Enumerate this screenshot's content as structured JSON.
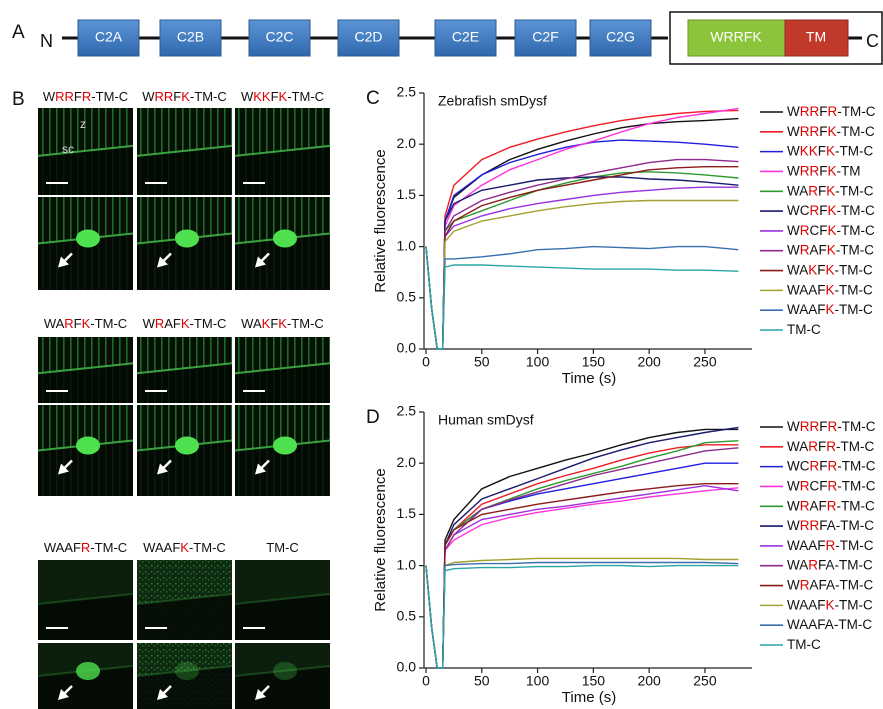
{
  "highlight_color": "#e00000",
  "panel_a": {
    "label": "A",
    "n_terminus": "N",
    "c_terminus": "C",
    "domains": [
      "C2A",
      "C2B",
      "C2C",
      "C2D",
      "C2E",
      "C2F",
      "C2G"
    ],
    "motif": "WRRFK",
    "tm": "TM"
  },
  "panel_b": {
    "label": "B",
    "z_label": "z",
    "sc_label": "sc",
    "constructs": [
      {
        "name": "WRRFR-TM-C",
        "red_letters": [
          1,
          2,
          4
        ]
      },
      {
        "name": "WRRFK-TM-C",
        "red_letters": [
          1,
          2,
          4
        ]
      },
      {
        "name": "WKKFK-TM-C",
        "red_letters": [
          1,
          2,
          4
        ]
      },
      {
        "name": "WARFK-TM-C",
        "red_letters": [
          2,
          4
        ]
      },
      {
        "name": "WRAFK-TM-C",
        "red_letters": [
          1,
          4
        ]
      },
      {
        "name": "WAKFK-TM-C",
        "red_letters": [
          2,
          4
        ]
      },
      {
        "name": "WAAFR-TM-C",
        "red_letters": [
          4
        ]
      },
      {
        "name": "WAAFK-TM-C",
        "red_letters": [
          4
        ]
      },
      {
        "name": "TM-C",
        "red_letters": []
      }
    ]
  },
  "chart_data": [
    {
      "type": "line",
      "panel_label": "C",
      "title": "Zebrafish smDysf",
      "xlabel": "Time (s)",
      "ylabel": "Relative fluorescence",
      "xlim": [
        0,
        285
      ],
      "xticks": [
        0,
        50,
        100,
        150,
        200,
        250
      ],
      "ylim": [
        0,
        2.5
      ],
      "yticks": [
        {
          "value": 0,
          "label": "0.0"
        },
        {
          "value": 0.5,
          "label": "0.5"
        },
        {
          "value": 1,
          "label": "1.0"
        },
        {
          "value": 1.5,
          "label": "1.5"
        },
        {
          "value": 2,
          "label": "2.0"
        },
        {
          "value": 2.5,
          "label": "2.5"
        }
      ],
      "x": [
        0,
        5,
        10,
        15,
        17,
        25,
        50,
        75,
        100,
        125,
        150,
        175,
        200,
        225,
        250,
        280
      ],
      "series": [
        {
          "name": "WRRFR-TM-C",
          "red_letters": [
            1,
            2,
            4
          ],
          "color": "#111111",
          "values": [
            1,
            0.4,
            0,
            0,
            1.25,
            1.48,
            1.7,
            1.85,
            1.95,
            2.03,
            2.1,
            2.16,
            2.2,
            2.22,
            2.23,
            2.25
          ]
        },
        {
          "name": "WRRFK-TM-C",
          "red_letters": [
            1,
            2,
            4
          ],
          "color": "#ee1c25",
          "values": [
            1,
            0.4,
            0,
            0,
            1.3,
            1.6,
            1.85,
            1.97,
            2.05,
            2.12,
            2.18,
            2.23,
            2.27,
            2.3,
            2.32,
            2.33
          ]
        },
        {
          "name": "WKKFK-TM-C",
          "red_letters": [
            1,
            2,
            4
          ],
          "color": "#1f1fe0",
          "values": [
            1,
            0.4,
            0,
            0,
            1.25,
            1.5,
            1.7,
            1.82,
            1.9,
            1.97,
            2.02,
            2.04,
            2.03,
            2.02,
            2.0,
            1.97
          ]
        },
        {
          "name": "WRRFK-TM",
          "red_letters": [
            1,
            2,
            4
          ],
          "color": "#ff33dd",
          "values": [
            1,
            0.4,
            0,
            0,
            1.2,
            1.4,
            1.6,
            1.75,
            1.85,
            1.95,
            2.03,
            2.12,
            2.2,
            2.26,
            2.3,
            2.35
          ]
        },
        {
          "name": "WARFK-TM-C",
          "red_letters": [
            2,
            4
          ],
          "color": "#2e9a2e",
          "values": [
            1,
            0.4,
            0,
            0,
            1.15,
            1.25,
            1.35,
            1.45,
            1.55,
            1.62,
            1.68,
            1.72,
            1.73,
            1.72,
            1.7,
            1.67
          ]
        },
        {
          "name": "WCRFK-TM-C",
          "red_letters": [
            2,
            4
          ],
          "color": "#1a1a6e",
          "values": [
            1,
            0.4,
            0,
            0,
            1.25,
            1.42,
            1.55,
            1.6,
            1.65,
            1.67,
            1.68,
            1.68,
            1.66,
            1.65,
            1.63,
            1.6
          ]
        },
        {
          "name": "WRCFK-TM-C",
          "red_letters": [
            1,
            4
          ],
          "color": "#9b30e0",
          "values": [
            1,
            0.4,
            0,
            0,
            1.1,
            1.2,
            1.3,
            1.37,
            1.42,
            1.46,
            1.5,
            1.53,
            1.55,
            1.57,
            1.58,
            1.58
          ]
        },
        {
          "name": "WRAFK-TM-C",
          "red_letters": [
            1,
            4
          ],
          "color": "#8e2a8e",
          "values": [
            1,
            0.4,
            0,
            0,
            1.15,
            1.3,
            1.45,
            1.53,
            1.6,
            1.66,
            1.72,
            1.77,
            1.82,
            1.85,
            1.85,
            1.83
          ]
        },
        {
          "name": "WAKFK-TM-C",
          "red_letters": [
            2,
            4
          ],
          "color": "#8b1a1a",
          "values": [
            1,
            0.4,
            0,
            0,
            1.1,
            1.25,
            1.4,
            1.48,
            1.55,
            1.6,
            1.65,
            1.7,
            1.75,
            1.77,
            1.78,
            1.78
          ]
        },
        {
          "name": "WAAFK-TM-C",
          "red_letters": [
            4
          ],
          "color": "#a3a032",
          "values": [
            1,
            0.4,
            0,
            0,
            1.05,
            1.15,
            1.25,
            1.3,
            1.35,
            1.39,
            1.42,
            1.44,
            1.45,
            1.45,
            1.45,
            1.45
          ]
        },
        {
          "name": "WAAFK-TM-C",
          "red_letters": [
            4
          ],
          "color": "#3a6fb0",
          "values": [
            1,
            0.4,
            0,
            0,
            0.88,
            0.88,
            0.9,
            0.93,
            0.97,
            0.98,
            1.0,
            0.99,
            0.98,
            1.0,
            1.0,
            0.97
          ]
        },
        {
          "name": "TM-C",
          "red_letters": [],
          "color": "#2aa5a5",
          "values": [
            1,
            0.4,
            0,
            0,
            0.8,
            0.82,
            0.82,
            0.81,
            0.8,
            0.79,
            0.78,
            0.78,
            0.78,
            0.77,
            0.77,
            0.76
          ]
        }
      ]
    },
    {
      "type": "line",
      "panel_label": "D",
      "title": "Human smDysf",
      "xlabel": "Time (s)",
      "ylabel": "Relative fluorescence",
      "xlim": [
        0,
        285
      ],
      "xticks": [
        0,
        50,
        100,
        150,
        200,
        250
      ],
      "ylim": [
        0,
        2.5
      ],
      "yticks": [
        {
          "value": 0,
          "label": "0.0"
        },
        {
          "value": 0.5,
          "label": "0.5"
        },
        {
          "value": 1,
          "label": "1.0"
        },
        {
          "value": 1.5,
          "label": "1.5"
        },
        {
          "value": 2,
          "label": "2.0"
        },
        {
          "value": 2.5,
          "label": "2.5"
        }
      ],
      "x": [
        0,
        5,
        10,
        15,
        17,
        25,
        50,
        75,
        100,
        125,
        150,
        175,
        200,
        225,
        250,
        280
      ],
      "series": [
        {
          "name": "WRRFR-TM-C",
          "red_letters": [
            1,
            2,
            4
          ],
          "color": "#111111",
          "values": [
            1,
            0.4,
            0,
            0,
            1.25,
            1.45,
            1.75,
            1.87,
            1.95,
            2.03,
            2.1,
            2.18,
            2.25,
            2.3,
            2.33,
            2.33
          ]
        },
        {
          "name": "WARFR-TM-C",
          "red_letters": [
            2,
            4
          ],
          "color": "#ee1c25",
          "values": [
            1,
            0.4,
            0,
            0,
            1.2,
            1.35,
            1.6,
            1.7,
            1.8,
            1.88,
            1.95,
            2.03,
            2.1,
            2.15,
            2.18,
            2.18
          ]
        },
        {
          "name": "WCRFR-TM-C",
          "red_letters": [
            2,
            4
          ],
          "color": "#1f1fe0",
          "values": [
            1,
            0.4,
            0,
            0,
            1.2,
            1.35,
            1.55,
            1.63,
            1.7,
            1.75,
            1.8,
            1.85,
            1.9,
            1.95,
            2.0,
            2.0
          ]
        },
        {
          "name": "WRCFR-TM-C",
          "red_letters": [
            1,
            4
          ],
          "color": "#ff33dd",
          "values": [
            1,
            0.4,
            0,
            0,
            1.15,
            1.25,
            1.4,
            1.47,
            1.52,
            1.56,
            1.6,
            1.63,
            1.67,
            1.7,
            1.73,
            1.76
          ]
        },
        {
          "name": "WRAFR-TM-C",
          "red_letters": [
            1,
            4
          ],
          "color": "#2e9a2e",
          "values": [
            1,
            0.4,
            0,
            0,
            1.2,
            1.35,
            1.55,
            1.65,
            1.75,
            1.83,
            1.9,
            1.97,
            2.05,
            2.12,
            2.2,
            2.22
          ]
        },
        {
          "name": "WRRFA-TM-C",
          "red_letters": [
            1,
            2
          ],
          "color": "#1a1a6e",
          "values": [
            1,
            0.4,
            0,
            0,
            1.2,
            1.4,
            1.65,
            1.75,
            1.85,
            1.95,
            2.05,
            2.13,
            2.2,
            2.25,
            2.3,
            2.35
          ]
        },
        {
          "name": "WAAFR-TM-C",
          "red_letters": [
            4
          ],
          "color": "#9b30e0",
          "values": [
            1,
            0.4,
            0,
            0,
            1.15,
            1.3,
            1.45,
            1.5,
            1.55,
            1.58,
            1.62,
            1.66,
            1.7,
            1.74,
            1.78,
            1.73
          ]
        },
        {
          "name": "WARFA-TM-C",
          "red_letters": [
            2
          ],
          "color": "#8e2a8e",
          "values": [
            1,
            0.4,
            0,
            0,
            1.15,
            1.3,
            1.55,
            1.64,
            1.72,
            1.8,
            1.88,
            1.94,
            2.0,
            2.06,
            2.12,
            2.15
          ]
        },
        {
          "name": "WRAFA-TM-C",
          "red_letters": [
            1
          ],
          "color": "#8b1a1a",
          "values": [
            1,
            0.4,
            0,
            0,
            1.2,
            1.35,
            1.5,
            1.55,
            1.6,
            1.64,
            1.68,
            1.72,
            1.75,
            1.78,
            1.8,
            1.8
          ]
        },
        {
          "name": "WAAFK-TM-C",
          "red_letters": [
            4
          ],
          "color": "#a3a032",
          "values": [
            1,
            0.4,
            0,
            0,
            1.0,
            1.03,
            1.05,
            1.06,
            1.07,
            1.07,
            1.07,
            1.07,
            1.07,
            1.07,
            1.06,
            1.06
          ]
        },
        {
          "name": "WAAFA-TM-C",
          "red_letters": [],
          "color": "#3a6fb0",
          "values": [
            1,
            0.4,
            0,
            0,
            1.0,
            1.01,
            1.02,
            1.02,
            1.03,
            1.03,
            1.03,
            1.03,
            1.03,
            1.03,
            1.03,
            1.02
          ]
        },
        {
          "name": "TM-C",
          "red_letters": [],
          "color": "#2aa5a5",
          "values": [
            1,
            0.4,
            0,
            0,
            0.95,
            0.97,
            0.98,
            0.98,
            0.99,
            0.99,
            1.0,
            1.0,
            0.99,
            1.0,
            1.0,
            1.0
          ]
        }
      ]
    }
  ]
}
